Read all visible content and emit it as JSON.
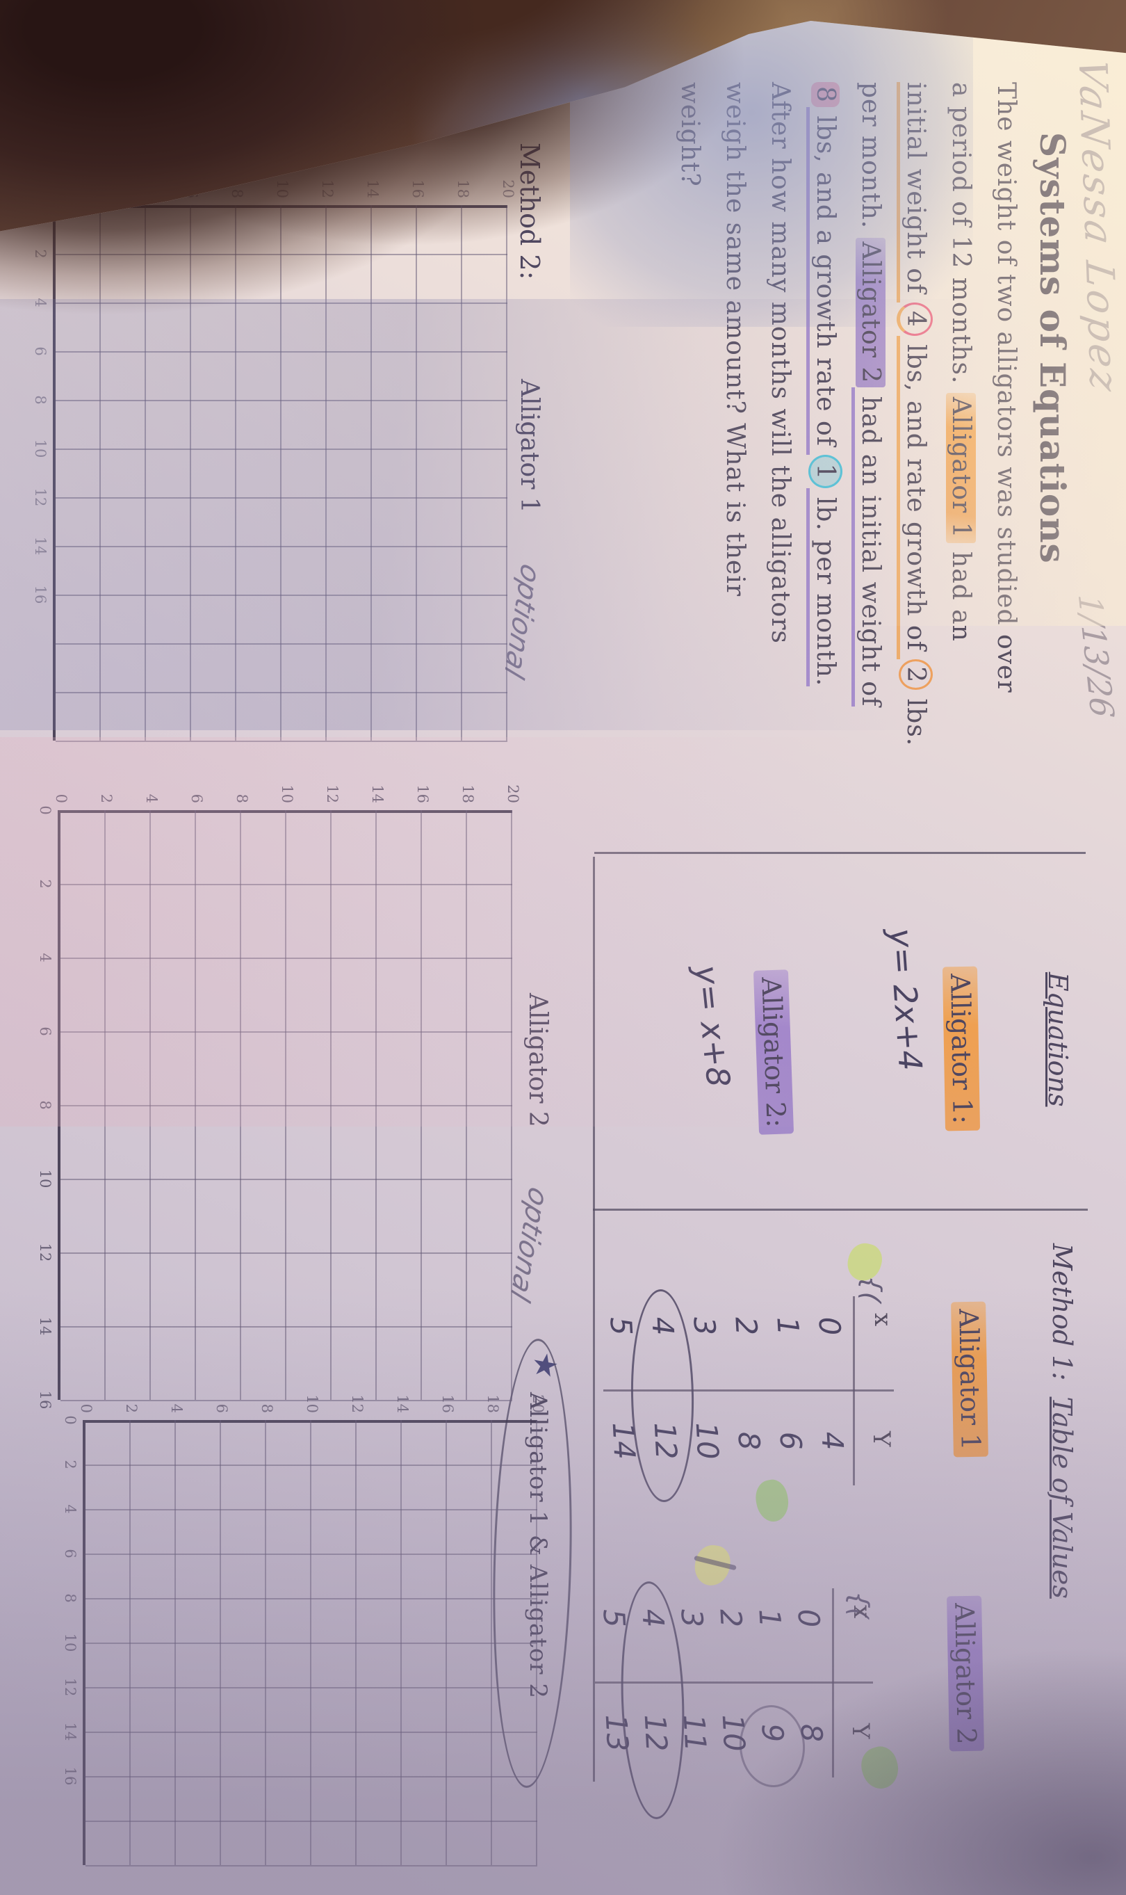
{
  "page": {
    "handwriting": {
      "name": "VaNessa Lopez",
      "date": "1/13/26"
    },
    "title": "Systems of Equations",
    "problem": {
      "lines": [
        [
          {
            "t": "The weight of two alligators was studied over"
          }
        ],
        [
          {
            "t": "a period of 12 months. "
          },
          {
            "t": "Alligator 1",
            "c": "hl-orange"
          },
          {
            "t": " had an"
          }
        ],
        [
          {
            "t": "initial weight of ",
            "c": "u-orange"
          },
          {
            "t": "4",
            "c": "circ-red u-orange"
          },
          {
            "t": " lbs, and rate growth of ",
            "c": "u-orange"
          },
          {
            "t": "2",
            "c": "circ-orange"
          },
          {
            "t": " lbs."
          }
        ],
        [
          {
            "t": "per month. "
          },
          {
            "t": "Alligator 2",
            "c": "hl-purple"
          },
          {
            "t": " had an initial weight of",
            "c": "u-purple"
          }
        ],
        [
          {
            "t": "8",
            "c": "hl-pink"
          },
          {
            "t": " lbs, and a growth rate of ",
            "c": "u-purple"
          },
          {
            "t": "1",
            "c": "circ-cyan"
          },
          {
            "t": " lb. per month.",
            "c": "u-purple"
          }
        ],
        [
          {
            "t": "After how many months will the alligators"
          }
        ],
        [
          {
            "t": "weigh the same amount? What is their"
          }
        ],
        [
          {
            "t": "weight?"
          }
        ]
      ]
    },
    "equations": {
      "header": "Equations",
      "alligator1_label": "Alligator 1:",
      "equation1": "y= 2x+4",
      "alligator2_label": "Alligator 2:",
      "equation2": "y= x+8"
    },
    "method1": {
      "header_prefix": "Method 1:",
      "header_title": "Table of Values",
      "tables": [
        {
          "label": "Alligator 1",
          "hl": "orange",
          "col_x": "x",
          "col_y": "Y",
          "rows": [
            [
              "0",
              "4"
            ],
            [
              "1",
              "6"
            ],
            [
              "2",
              "8"
            ],
            [
              "3",
              "10"
            ],
            [
              "4",
              "12"
            ],
            [
              "5",
              "14"
            ]
          ],
          "circled_row": 4
        },
        {
          "label": "Alligator 2",
          "hl": "purple",
          "col_x": "x",
          "col_y": "Y",
          "rows": [
            [
              "0",
              "8"
            ],
            [
              "1",
              "9"
            ],
            [
              "2",
              "10"
            ],
            [
              "3",
              "11"
            ],
            [
              "4",
              "12"
            ],
            [
              "5",
              "13"
            ]
          ],
          "circled_row": 4
        }
      ]
    },
    "method2": {
      "label": "Method 2:",
      "grids": [
        {
          "label": "Alligator 1",
          "note": "optional"
        },
        {
          "label": "Alligator 2",
          "note": "optional"
        },
        {
          "label": "Alligator 1 & Alligator 2",
          "star": "★"
        }
      ],
      "x_axis_labels": [
        "0",
        "2",
        "4",
        "6",
        "8",
        "10",
        "12",
        "14",
        "16"
      ],
      "y_axis_labels": [
        "20",
        "18",
        "16",
        "14",
        "12",
        "10",
        "8",
        "6",
        "4",
        "2",
        "0"
      ]
    },
    "colors": {
      "highlight_orange": "#f09a3e",
      "highlight_purple": "#9679c9",
      "highlight_green": "#86cf4a",
      "highlight_yellow": "#eef06a",
      "circle_red": "#e26079",
      "circle_cyan": "#49c3dc",
      "pen": "#4b4462",
      "pencil": "#9a8e96"
    }
  }
}
